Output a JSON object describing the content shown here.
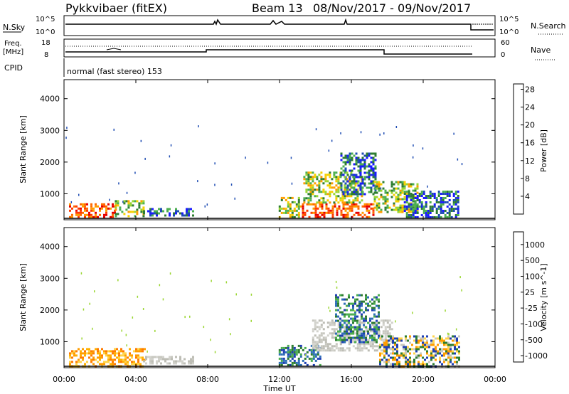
{
  "header": {
    "title": "Pykkvibaer (fitEX)",
    "beam": "Beam 13",
    "dates": "08/Nov/2017 - 09/Nov/2017"
  },
  "strips": {
    "nsky_label": "N.Sky",
    "nsky_top": "10^5",
    "nsky_bottom": "10^0",
    "nsearch_label": "N.Search",
    "nsearch_top": "10^5",
    "nsearch_bottom": "10^0",
    "freq_label_1": "Freq.",
    "freq_label_2": "[MHz]",
    "freq_top": "18",
    "freq_bottom": "8",
    "nave_label": "Nave",
    "nave_top": "60",
    "nave_bottom": "0",
    "cpid_label": "CPID",
    "cpid_value": "normal (fast stereo) 153"
  },
  "chart_data": [
    {
      "type": "heatmap",
      "panel": "power",
      "ylabel": "Slant Range [km]",
      "xlabel": "",
      "xlim": [
        "00:00",
        "00:00"
      ],
      "ylim": [
        180,
        4600
      ],
      "yticks": [
        1000,
        2000,
        3000,
        4000
      ],
      "colorbar": {
        "label": "Power [dB]",
        "ticks": [
          "4",
          "8",
          "12",
          "16",
          "20",
          "24",
          "28"
        ],
        "colors": [
          "#1a1aff",
          "#1f4db3",
          "#2e7d32",
          "#4caf50",
          "#9ad630",
          "#f5d000",
          "#ff9d00",
          "#ff5a00",
          "#e60000"
        ]
      },
      "regions": [
        {
          "t": [
            0.2,
            2.8
          ],
          "range": [
            250,
            700
          ],
          "level": "high"
        },
        {
          "t": [
            2.8,
            4.4
          ],
          "range": [
            300,
            800
          ],
          "level": "mid"
        },
        {
          "t": [
            4.4,
            7.3
          ],
          "range": [
            300,
            550
          ],
          "level": "low"
        },
        {
          "t": [
            12.1,
            13.3
          ],
          "range": [
            250,
            900
          ],
          "level": "mid"
        },
        {
          "t": [
            13.3,
            17.5
          ],
          "range": [
            250,
            700
          ],
          "level": "high"
        },
        {
          "t": [
            13.5,
            16.8
          ],
          "range": [
            700,
            1700
          ],
          "level": "mid"
        },
        {
          "t": [
            15.6,
            17.6
          ],
          "range": [
            1000,
            2300
          ],
          "level": "low"
        },
        {
          "t": [
            17.5,
            20.0
          ],
          "range": [
            400,
            1400
          ],
          "level": "mid"
        },
        {
          "t": [
            19.2,
            22.3
          ],
          "range": [
            250,
            1100
          ],
          "level": "low"
        }
      ]
    },
    {
      "type": "heatmap",
      "panel": "velocity",
      "ylabel": "Slant Range [km]",
      "xlabel": "Time UT",
      "xlim": [
        "00:00",
        "00:00"
      ],
      "ylim": [
        180,
        4600
      ],
      "yticks": [
        1000,
        2000,
        3000,
        4000
      ],
      "xticks": [
        "00:00",
        "04:00",
        "08:00",
        "12:00",
        "16:00",
        "20:00",
        "00:00"
      ],
      "colorbar": {
        "label": "Velocity [m s^-1]",
        "ticks": [
          "1000",
          "500",
          "100",
          "25",
          "-25",
          "-100",
          "-500",
          "-1000"
        ],
        "colors": [
          "#1f3fb3",
          "#2e6fb8",
          "#2e7d32",
          "#4caf50",
          "#9ad630",
          "#c8c8c0",
          "#ffd54a",
          "#ff9d00",
          "#ff5a00",
          "#e60000"
        ]
      },
      "regions": [
        {
          "t": [
            0.2,
            4.5
          ],
          "range": [
            250,
            800
          ],
          "level": "negative"
        },
        {
          "t": [
            4.4,
            7.3
          ],
          "range": [
            300,
            550
          ],
          "level": "near-zero"
        },
        {
          "t": [
            12.1,
            14.5
          ],
          "range": [
            250,
            900
          ],
          "level": "positive"
        },
        {
          "t": [
            14.0,
            18.5
          ],
          "range": [
            700,
            1700
          ],
          "level": "near-zero"
        },
        {
          "t": [
            15.3,
            17.8
          ],
          "range": [
            1000,
            2500
          ],
          "level": "positive"
        },
        {
          "t": [
            17.8,
            22.3
          ],
          "range": [
            250,
            1200
          ],
          "level": "mixed"
        }
      ]
    }
  ],
  "colors": {
    "axis": "#000000",
    "background": "#ffffff"
  }
}
